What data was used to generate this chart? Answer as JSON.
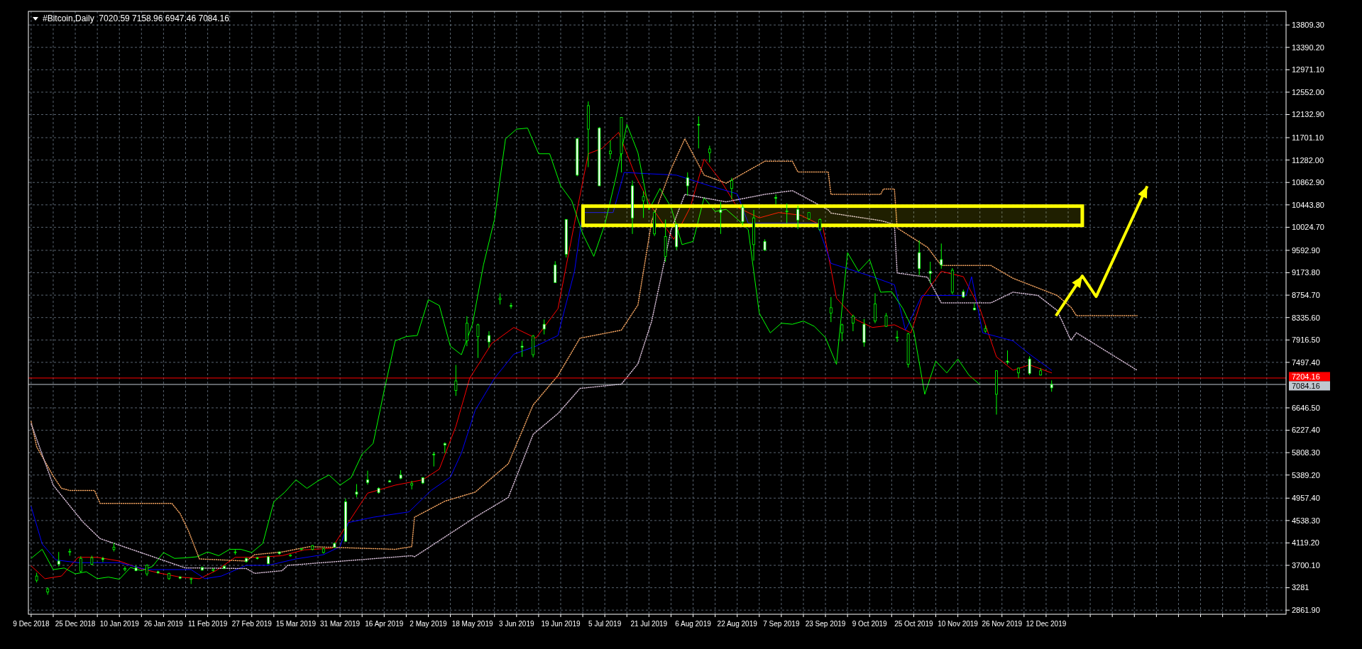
{
  "chart_data": {
    "type": "candlestick",
    "title": "#Bitcoin,Daily  7020.59 7158.96 6947.46 7084.16",
    "color": "#00ff00",
    "grid": true,
    "xlim": [
      "2018-12-08",
      "2020-03-08"
    ],
    "ylim": [
      2785,
      14064
    ],
    "xticks": [
      {
        "value": "2018-12-09",
        "label": "9 Dec 2018"
      },
      {
        "value": "2018-12-17",
        "label": null
      },
      {
        "value": "2018-12-25",
        "label": "25 Dec 2018"
      },
      {
        "value": "2019-01-02",
        "label": null
      },
      {
        "value": "2019-01-10",
        "label": "10 Jan 2019"
      },
      {
        "value": "2019-01-18",
        "label": null
      },
      {
        "value": "2019-01-26",
        "label": "26 Jan 2019"
      },
      {
        "value": "2019-02-03",
        "label": null
      },
      {
        "value": "2019-02-11",
        "label": "11 Feb 2019"
      },
      {
        "value": "2019-02-19",
        "label": null
      },
      {
        "value": "2019-02-27",
        "label": "27 Feb 2019"
      },
      {
        "value": "2019-03-07",
        "label": null
      },
      {
        "value": "2019-03-15",
        "label": "15 Mar 2019"
      },
      {
        "value": "2019-03-23",
        "label": null
      },
      {
        "value": "2019-03-31",
        "label": "31 Mar 2019"
      },
      {
        "value": "2019-04-08",
        "label": null
      },
      {
        "value": "2019-04-16",
        "label": "16 Apr 2019"
      },
      {
        "value": "2019-04-24",
        "label": null
      },
      {
        "value": "2019-05-02",
        "label": "2 May 2019"
      },
      {
        "value": "2019-05-10",
        "label": null
      },
      {
        "value": "2019-05-18",
        "label": "18 May 2019"
      },
      {
        "value": "2019-05-26",
        "label": null
      },
      {
        "value": "2019-06-03",
        "label": "3 Jun 2019"
      },
      {
        "value": "2019-06-11",
        "label": null
      },
      {
        "value": "2019-06-19",
        "label": "19 Jun 2019"
      },
      {
        "value": "2019-06-27",
        "label": null
      },
      {
        "value": "2019-07-05",
        "label": "5 Jul 2019"
      },
      {
        "value": "2019-07-13",
        "label": null
      },
      {
        "value": "2019-07-21",
        "label": "21 Jul 2019"
      },
      {
        "value": "2019-07-29",
        "label": null
      },
      {
        "value": "2019-08-06",
        "label": "6 Aug 2019"
      },
      {
        "value": "2019-08-14",
        "label": null
      },
      {
        "value": "2019-08-22",
        "label": "22 Aug 2019"
      },
      {
        "value": "2019-08-30",
        "label": null
      },
      {
        "value": "2019-09-07",
        "label": "7 Sep 2019"
      },
      {
        "value": "2019-09-15",
        "label": null
      },
      {
        "value": "2019-09-23",
        "label": "23 Sep 2019"
      },
      {
        "value": "2019-10-01",
        "label": null
      },
      {
        "value": "2019-10-09",
        "label": "9 Oct 2019"
      },
      {
        "value": "2019-10-17",
        "label": null
      },
      {
        "value": "2019-10-25",
        "label": "25 Oct 2019"
      },
      {
        "value": "2019-11-02",
        "label": null
      },
      {
        "value": "2019-11-10",
        "label": "10 Nov 2019"
      },
      {
        "value": "2019-11-18",
        "label": null
      },
      {
        "value": "2019-11-26",
        "label": "26 Nov 2019"
      },
      {
        "value": "2019-12-04",
        "label": null
      },
      {
        "value": "2019-12-12",
        "label": "12 Dec 2019"
      },
      {
        "value": "2019-12-20",
        "label": null
      },
      {
        "value": "2019-12-28",
        "label": null
      },
      {
        "value": "2020-01-05",
        "label": null
      },
      {
        "value": "2020-01-13",
        "label": null
      },
      {
        "value": "2020-01-21",
        "label": null
      },
      {
        "value": "2020-01-29",
        "label": null
      },
      {
        "value": "2020-02-06",
        "label": null
      },
      {
        "value": "2020-02-14",
        "label": null
      },
      {
        "value": "2020-02-22",
        "label": null
      },
      {
        "value": "2020-03-01",
        "label": null
      }
    ],
    "yticks": [
      {
        "value": 2861.9,
        "label": "2861.90"
      },
      3281,
      {
        "value": 3700.1,
        "label": "3700.10"
      },
      {
        "value": 4119.2,
        "label": "4119.20"
      },
      {
        "value": 4538.3,
        "label": "4538.30"
      },
      {
        "value": 4957.4,
        "label": "4957.40"
      },
      {
        "value": 5389.2,
        "label": "5389.20"
      },
      {
        "value": 5808.3,
        "label": "5808.30"
      },
      {
        "value": 6227.4,
        "label": "6227.40"
      },
      {
        "value": 6646.5,
        "label": "6646.50"
      },
      {
        "value": 7497.4,
        "label": "7497.40"
      },
      {
        "value": 7916.5,
        "label": "7916.50"
      },
      {
        "value": 8335.6,
        "label": "8335.60"
      },
      {
        "value": 8754.7,
        "label": "8754.70"
      },
      {
        "value": 9173.8,
        "label": "9173.80"
      },
      {
        "value": 9592.9,
        "label": "9592.90"
      },
      {
        "value": 10024.7,
        "label": "10024.70"
      },
      {
        "value": 10443.8,
        "label": "10443.80"
      },
      {
        "value": 10862.9,
        "label": "10862.90"
      },
      {
        "value": 11282,
        "label": "11282.00"
      },
      {
        "value": 11701.1,
        "label": "11701.10"
      },
      {
        "value": 12132.9,
        "label": "12132.90"
      },
      {
        "value": 12552,
        "label": "12552.00"
      },
      {
        "value": 12971.1,
        "label": "12971.10"
      },
      {
        "value": 13390.2,
        "label": "13390.20"
      },
      {
        "value": 13809.3,
        "label": "13809.30"
      }
    ],
    "x": [
      "2018-12-11",
      "2018-12-15",
      "2018-12-19",
      "2018-12-23",
      "2018-12-27",
      "2018-12-31",
      "2019-01-04",
      "2019-01-08",
      "2019-01-12",
      "2019-01-16",
      "2019-01-20",
      "2019-01-24",
      "2019-01-28",
      "2019-02-01",
      "2019-02-05",
      "2019-02-09",
      "2019-02-13",
      "2019-02-17",
      "2019-02-21",
      "2019-02-25",
      "2019-03-01",
      "2019-03-05",
      "2019-03-09",
      "2019-03-13",
      "2019-03-17",
      "2019-03-21",
      "2019-03-25",
      "2019-03-29",
      "2019-04-02",
      "2019-04-06",
      "2019-04-10",
      "2019-04-14",
      "2019-04-18",
      "2019-04-22",
      "2019-04-26",
      "2019-04-30",
      "2019-05-04",
      "2019-05-08",
      "2019-05-12",
      "2019-05-16",
      "2019-05-20",
      "2019-05-24",
      "2019-05-28",
      "2019-06-01",
      "2019-06-05",
      "2019-06-09",
      "2019-06-13",
      "2019-06-17",
      "2019-06-21",
      "2019-06-25",
      "2019-06-29",
      "2019-07-03",
      "2019-07-07",
      "2019-07-11",
      "2019-07-15",
      "2019-07-19",
      "2019-07-23",
      "2019-07-27",
      "2019-07-31",
      "2019-08-04",
      "2019-08-08",
      "2019-08-12",
      "2019-08-16",
      "2019-08-20",
      "2019-08-24",
      "2019-08-28",
      "2019-09-01",
      "2019-09-05",
      "2019-09-09",
      "2019-09-13",
      "2019-09-17",
      "2019-09-21",
      "2019-09-25",
      "2019-09-29",
      "2019-10-03",
      "2019-10-07",
      "2019-10-11",
      "2019-10-15",
      "2019-10-19",
      "2019-10-23",
      "2019-10-27",
      "2019-10-31",
      "2019-11-04",
      "2019-11-08",
      "2019-11-12",
      "2019-11-16",
      "2019-11-20",
      "2019-11-24",
      "2019-11-28",
      "2019-12-02",
      "2019-12-06",
      "2019-12-10",
      "2019-12-14"
    ],
    "ohlc": [
      [
        3500,
        3560,
        3380,
        3420
      ],
      [
        3260,
        3290,
        3150,
        3200
      ],
      [
        3720,
        3950,
        3680,
        3780
      ],
      [
        3960,
        4010,
        3880,
        3950
      ],
      [
        3830,
        3870,
        3560,
        3590
      ],
      [
        3840,
        3880,
        3700,
        3720
      ],
      [
        3810,
        3860,
        3760,
        3830
      ],
      [
        4040,
        4120,
        3960,
        4000
      ],
      [
        3640,
        3680,
        3590,
        3620
      ],
      [
        3600,
        3700,
        3590,
        3650
      ],
      [
        3700,
        3720,
        3500,
        3540
      ],
      [
        3560,
        3600,
        3540,
        3580
      ],
      [
        3550,
        3560,
        3430,
        3450
      ],
      [
        3460,
        3500,
        3440,
        3480
      ],
      [
        3450,
        3470,
        3350,
        3440
      ],
      [
        3610,
        3680,
        3600,
        3660
      ],
      [
        3620,
        3650,
        3580,
        3600
      ],
      [
        3640,
        3700,
        3630,
        3680
      ],
      [
        3950,
        3990,
        3900,
        3940
      ],
      [
        3770,
        3850,
        3750,
        3830
      ],
      [
        3830,
        3860,
        3810,
        3840
      ],
      [
        3730,
        3880,
        3720,
        3860
      ],
      [
        3920,
        3960,
        3900,
        3950
      ],
      [
        3890,
        3910,
        3860,
        3880
      ],
      [
        4010,
        4020,
        3980,
        3995
      ],
      [
        4070,
        4080,
        3980,
        4000
      ],
      [
        4010,
        4030,
        3920,
        3940
      ],
      [
        4040,
        4130,
        4030,
        4110
      ],
      [
        4150,
        4950,
        4140,
        4890
      ],
      [
        5030,
        5220,
        4970,
        5070
      ],
      [
        5250,
        5470,
        5210,
        5300
      ],
      [
        5060,
        5160,
        5040,
        5140
      ],
      [
        5260,
        5300,
        5250,
        5280
      ],
      [
        5330,
        5480,
        5310,
        5390
      ],
      [
        5230,
        5280,
        5120,
        5200
      ],
      [
        5240,
        5350,
        5220,
        5340
      ],
      [
        5770,
        5820,
        5550,
        5780
      ],
      [
        5950,
        6000,
        5800,
        5980
      ],
      [
        7150,
        7450,
        6870,
        6970
      ],
      [
        8230,
        8360,
        7800,
        7900
      ],
      [
        8200,
        8220,
        7580,
        7980
      ],
      [
        7880,
        8080,
        7770,
        8000
      ],
      [
        8700,
        8790,
        8580,
        8670
      ],
      [
        8560,
        8610,
        8500,
        8560
      ],
      [
        7780,
        7900,
        7600,
        7800
      ],
      [
        7990,
        8010,
        7590,
        7640
      ],
      [
        8120,
        8300,
        8020,
        8210
      ],
      [
        8990,
        9390,
        8990,
        9320
      ],
      [
        9520,
        10180,
        9460,
        10170
      ],
      [
        11000,
        11700,
        10980,
        11680
      ],
      [
        12300,
        12380,
        11150,
        11860
      ],
      [
        10800,
        11900,
        10800,
        11880
      ],
      [
        11450,
        11650,
        11300,
        11400
      ],
      [
        12080,
        12080,
        11050,
        11400
      ],
      [
        10200,
        10900,
        9900,
        10800
      ],
      [
        10600,
        10700,
        10200,
        10520
      ],
      [
        10300,
        10350,
        9860,
        9900
      ],
      [
        9850,
        10170,
        9380,
        9480
      ],
      [
        9660,
        10080,
        9600,
        10080
      ],
      [
        10800,
        11050,
        10620,
        10950
      ],
      [
        11950,
        12100,
        11500,
        11950
      ],
      [
        11490,
        11550,
        11240,
        11420
      ],
      [
        10300,
        10500,
        9900,
        10350
      ],
      [
        10900,
        10950,
        10550,
        10750
      ],
      [
        10130,
        10450,
        10060,
        10400
      ],
      [
        10200,
        10350,
        9400,
        9700
      ],
      [
        9600,
        9800,
        9580,
        9760
      ],
      [
        10580,
        10640,
        10450,
        10580
      ],
      [
        10330,
        10470,
        10100,
        10320
      ],
      [
        10160,
        10430,
        9990,
        10360
      ],
      [
        10300,
        10300,
        10160,
        10180
      ],
      [
        10170,
        10190,
        9950,
        9980
      ],
      [
        8520,
        8720,
        8250,
        8420
      ],
      [
        8200,
        8220,
        7890,
        8050
      ],
      [
        8360,
        8390,
        8080,
        8230
      ],
      [
        7870,
        8310,
        7790,
        8210
      ],
      [
        8590,
        8790,
        8230,
        8270
      ],
      [
        8370,
        8420,
        8160,
        8170
      ],
      [
        7970,
        8090,
        7880,
        7960
      ],
      [
        8030,
        8050,
        7400,
        7460
      ],
      [
        9250,
        9780,
        9130,
        9550
      ],
      [
        9160,
        9380,
        8980,
        9200
      ],
      [
        9320,
        9720,
        9250,
        9420
      ],
      [
        9220,
        9260,
        8770,
        8810
      ],
      [
        8720,
        8860,
        8700,
        8820
      ],
      [
        8480,
        8600,
        8470,
        8510
      ],
      [
        8130,
        8190,
        8050,
        8080
      ],
      [
        7340,
        7350,
        6520,
        6900
      ],
      [
        7500,
        7720,
        7460,
        7520
      ],
      [
        7390,
        7400,
        7200,
        7300
      ],
      [
        7290,
        7610,
        7260,
        7560
      ],
      [
        7340,
        7390,
        7250,
        7260
      ],
      [
        7020.59,
        7158.96,
        6947.46,
        7084.16
      ]
    ],
    "series": [
      {
        "type": "line",
        "color": "#ff0000",
        "x": [
          "2018-12-09",
          "2018-12-14",
          "2018-12-20",
          "2018-12-26",
          "2019-01-02",
          "2019-01-10",
          "2019-01-17",
          "2019-01-24",
          "2019-02-01",
          "2019-02-08",
          "2019-02-14",
          "2019-02-21",
          "2019-03-01",
          "2019-03-10",
          "2019-03-18",
          "2019-03-28",
          "2019-04-03",
          "2019-04-10",
          "2019-04-20",
          "2019-04-30",
          "2019-05-06",
          "2019-05-12",
          "2019-05-17",
          "2019-05-25",
          "2019-06-02",
          "2019-06-10",
          "2019-06-18",
          "2019-06-24",
          "2019-06-29",
          "2019-07-04",
          "2019-07-10",
          "2019-07-16",
          "2019-07-22",
          "2019-07-30",
          "2019-08-05",
          "2019-08-10",
          "2019-08-16",
          "2019-08-22",
          "2019-08-30",
          "2019-09-06",
          "2019-09-14",
          "2019-09-22",
          "2019-09-27",
          "2019-10-04",
          "2019-10-10",
          "2019-10-18",
          "2019-10-24",
          "2019-10-28",
          "2019-11-04",
          "2019-11-12",
          "2019-11-18",
          "2019-11-24",
          "2019-11-30",
          "2019-12-06",
          "2019-12-14"
        ],
        "values": [
          3690,
          3450,
          3500,
          3850,
          3850,
          3780,
          3650,
          3560,
          3480,
          3450,
          3600,
          3850,
          3850,
          3880,
          3990,
          4020,
          4500,
          5050,
          5200,
          5300,
          5500,
          6300,
          7200,
          7850,
          8150,
          7950,
          8500,
          10100,
          11400,
          11500,
          11800,
          11000,
          10400,
          9800,
          10400,
          11300,
          10900,
          10400,
          10200,
          10300,
          10250,
          10050,
          8700,
          8300,
          8150,
          8200,
          8050,
          8700,
          9200,
          9100,
          8500,
          7600,
          7350,
          7450,
          7300
        ]
      },
      {
        "type": "line",
        "color": "#0000ff",
        "x": [
          "2018-12-09",
          "2018-12-13",
          "2018-12-18",
          "2018-12-26",
          "2019-01-10",
          "2019-01-20",
          "2019-02-05",
          "2019-02-10",
          "2019-02-16",
          "2019-02-25",
          "2019-03-05",
          "2019-03-15",
          "2019-03-25",
          "2019-03-31",
          "2019-04-03",
          "2019-04-12",
          "2019-04-25",
          "2019-05-03",
          "2019-05-10",
          "2019-05-14",
          "2019-05-19",
          "2019-05-26",
          "2019-06-02",
          "2019-06-10",
          "2019-06-18",
          "2019-06-24",
          "2019-06-27",
          "2019-07-08",
          "2019-07-12",
          "2019-07-31",
          "2019-08-12",
          "2019-08-22",
          "2019-08-26",
          "2019-09-20",
          "2019-09-25",
          "2019-10-10",
          "2019-10-18",
          "2019-10-22",
          "2019-10-28",
          "2019-11-13",
          "2019-11-15",
          "2019-11-19",
          "2019-11-30",
          "2019-12-06",
          "2019-12-14"
        ],
        "values": [
          4800,
          4100,
          3800,
          3750,
          3750,
          3620,
          3620,
          3450,
          3500,
          3700,
          3700,
          3820,
          3900,
          4050,
          4500,
          4600,
          4700,
          5100,
          5350,
          5800,
          6600,
          7200,
          7650,
          7800,
          8000,
          9200,
          10300,
          10300,
          11050,
          11000,
          10800,
          10650,
          10100,
          10100,
          9350,
          9100,
          8950,
          8100,
          8750,
          8750,
          9100,
          8050,
          7900,
          7650,
          7350
        ]
      },
      {
        "type": "line",
        "color": "#00ff00",
        "x": [
          "2018-12-09",
          "2018-12-13",
          "2018-12-17",
          "2018-12-21",
          "2018-12-25",
          "2018-12-29",
          "2019-01-02",
          "2019-01-06",
          "2019-01-10",
          "2019-01-14",
          "2019-01-18",
          "2019-01-22",
          "2019-01-26",
          "2019-01-30",
          "2019-02-03",
          "2019-02-07",
          "2019-02-11",
          "2019-02-15",
          "2019-02-19",
          "2019-02-23",
          "2019-02-27",
          "2019-03-03",
          "2019-03-07",
          "2019-03-11",
          "2019-03-15",
          "2019-03-19",
          "2019-03-23",
          "2019-03-27",
          "2019-03-31",
          "2019-04-04",
          "2019-04-08",
          "2019-04-12",
          "2019-04-16",
          "2019-04-20",
          "2019-04-24",
          "2019-04-28",
          "2019-05-02",
          "2019-05-06",
          "2019-05-10",
          "2019-05-14",
          "2019-05-18",
          "2019-05-22",
          "2019-05-26",
          "2019-05-30",
          "2019-06-03",
          "2019-06-07",
          "2019-06-11",
          "2019-06-15",
          "2019-06-19",
          "2019-06-23",
          "2019-06-27",
          "2019-07-01",
          "2019-07-05",
          "2019-07-09",
          "2019-07-13",
          "2019-07-17",
          "2019-07-21",
          "2019-07-25",
          "2019-07-29",
          "2019-08-02",
          "2019-08-06",
          "2019-08-10",
          "2019-08-14",
          "2019-08-18",
          "2019-08-22",
          "2019-08-26",
          "2019-08-30",
          "2019-09-03",
          "2019-09-07",
          "2019-09-11",
          "2019-09-15",
          "2019-09-19",
          "2019-09-23",
          "2019-09-27",
          "2019-10-01",
          "2019-10-05",
          "2019-10-09",
          "2019-10-13",
          "2019-10-17",
          "2019-10-21",
          "2019-10-25",
          "2019-10-29",
          "2019-11-02",
          "2019-11-06",
          "2019-11-10",
          "2019-11-14",
          "2019-11-18"
        ],
        "values": [
          3830,
          4000,
          3620,
          3650,
          3540,
          3580,
          3450,
          3480,
          3440,
          3660,
          3600,
          3680,
          3940,
          3830,
          3840,
          3860,
          3950,
          3880,
          4000,
          4000,
          3940,
          4110,
          4890,
          5070,
          5300,
          5140,
          5280,
          5390,
          5200,
          5340,
          5780,
          5980,
          6970,
          7900,
          7980,
          8000,
          8670,
          8560,
          7800,
          7640,
          8210,
          9320,
          10170,
          11680,
          11860,
          11880,
          11400,
          11400,
          10800,
          10520,
          9900,
          9480,
          10080,
          10950,
          11950,
          11420,
          10350,
          10750,
          10400,
          9700,
          9760,
          10580,
          10320,
          10360,
          10180,
          9980,
          8420,
          8050,
          8230,
          8210,
          8270,
          8170,
          7960,
          7460,
          9550,
          9200,
          9420,
          8810,
          8820,
          8510,
          8080,
          6900,
          7520,
          7300,
          7560,
          7260,
          7080
        ]
      },
      {
        "type": "line",
        "color": "#f4a460",
        "line_style": "dotted",
        "x": [
          "2018-12-09",
          "2018-12-11",
          "2018-12-17",
          "2018-12-20",
          "2018-12-23",
          "2019-01-01",
          "2019-01-03",
          "2019-01-29",
          "2019-02-01",
          "2019-02-04",
          "2019-02-08",
          "2019-02-25",
          "2019-02-28",
          "2019-03-10",
          "2019-03-20",
          "2019-04-20",
          "2019-04-26",
          "2019-04-27",
          "2019-05-08",
          "2019-05-19",
          "2019-05-31",
          "2019-06-09",
          "2019-06-18",
          "2019-06-26",
          "2019-07-11",
          "2019-07-17",
          "2019-07-22",
          "2019-07-29",
          "2019-08-03",
          "2019-08-10",
          "2019-08-18",
          "2019-09-01",
          "2019-09-11",
          "2019-09-13",
          "2019-09-24",
          "2019-09-25",
          "2019-10-13",
          "2019-10-14",
          "2019-10-18",
          "2019-10-19",
          "2019-10-30",
          "2019-11-04",
          "2019-11-22",
          "2019-11-30",
          "2019-12-09",
          "2019-12-16",
          "2019-12-21",
          "2019-12-23",
          "2020-01-14"
        ],
        "values": [
          6390,
          5920,
          5370,
          5140,
          5100,
          5100,
          4860,
          4860,
          4670,
          4350,
          3820,
          3780,
          3900,
          3950,
          4050,
          4000,
          4050,
          4600,
          4900,
          5070,
          5600,
          6700,
          7250,
          7950,
          8100,
          8570,
          10140,
          11110,
          11680,
          11000,
          10850,
          11260,
          11260,
          11060,
          11060,
          10640,
          10640,
          10740,
          10740,
          10010,
          9650,
          9310,
          9310,
          9070,
          8890,
          8750,
          8530,
          8370,
          8370
        ]
      },
      {
        "type": "line",
        "color": "#d8bfd8",
        "line_style": "dotted",
        "x": [
          "2018-12-09",
          "2018-12-17",
          "2018-12-24",
          "2018-12-28",
          "2019-01-03",
          "2019-01-20",
          "2019-02-03",
          "2019-02-08",
          "2019-02-25",
          "2019-02-28",
          "2019-03-10",
          "2019-03-12",
          "2019-04-26",
          "2019-04-27",
          "2019-05-19",
          "2019-05-31",
          "2019-06-09",
          "2019-06-18",
          "2019-06-26",
          "2019-07-11",
          "2019-07-17",
          "2019-07-22",
          "2019-07-29",
          "2019-08-03",
          "2019-08-18",
          "2019-09-01",
          "2019-09-11",
          "2019-09-24",
          "2019-09-25",
          "2019-10-13",
          "2019-10-18",
          "2019-10-19",
          "2019-10-30",
          "2019-11-04",
          "2019-11-22",
          "2019-11-30",
          "2019-12-09",
          "2019-12-16",
          "2019-12-21",
          "2019-12-23",
          "2020-01-14"
        ],
        "values": [
          6350,
          5200,
          4750,
          4500,
          4200,
          3900,
          3650,
          3650,
          3640,
          3550,
          3600,
          3700,
          3880,
          3860,
          4600,
          4970,
          6150,
          6540,
          7010,
          7090,
          7470,
          8270,
          9970,
          10640,
          10500,
          10640,
          10710,
          10350,
          10290,
          10150,
          10080,
          9170,
          9090,
          8610,
          8610,
          8810,
          8750,
          8470,
          7910,
          8050,
          7350
        ]
      }
    ],
    "ref_lines": [
      {
        "axis": "y",
        "value": 7204.16,
        "label": "7204.16",
        "color": "#ff0000"
      },
      {
        "axis": "y",
        "value": 7084.16,
        "label": "7084.16",
        "color": "#c0c8d0"
      }
    ],
    "bands": [
      {
        "axis": "y",
        "from": 10060,
        "to": 10420,
        "color": "#ffff00"
      }
    ]
  }
}
